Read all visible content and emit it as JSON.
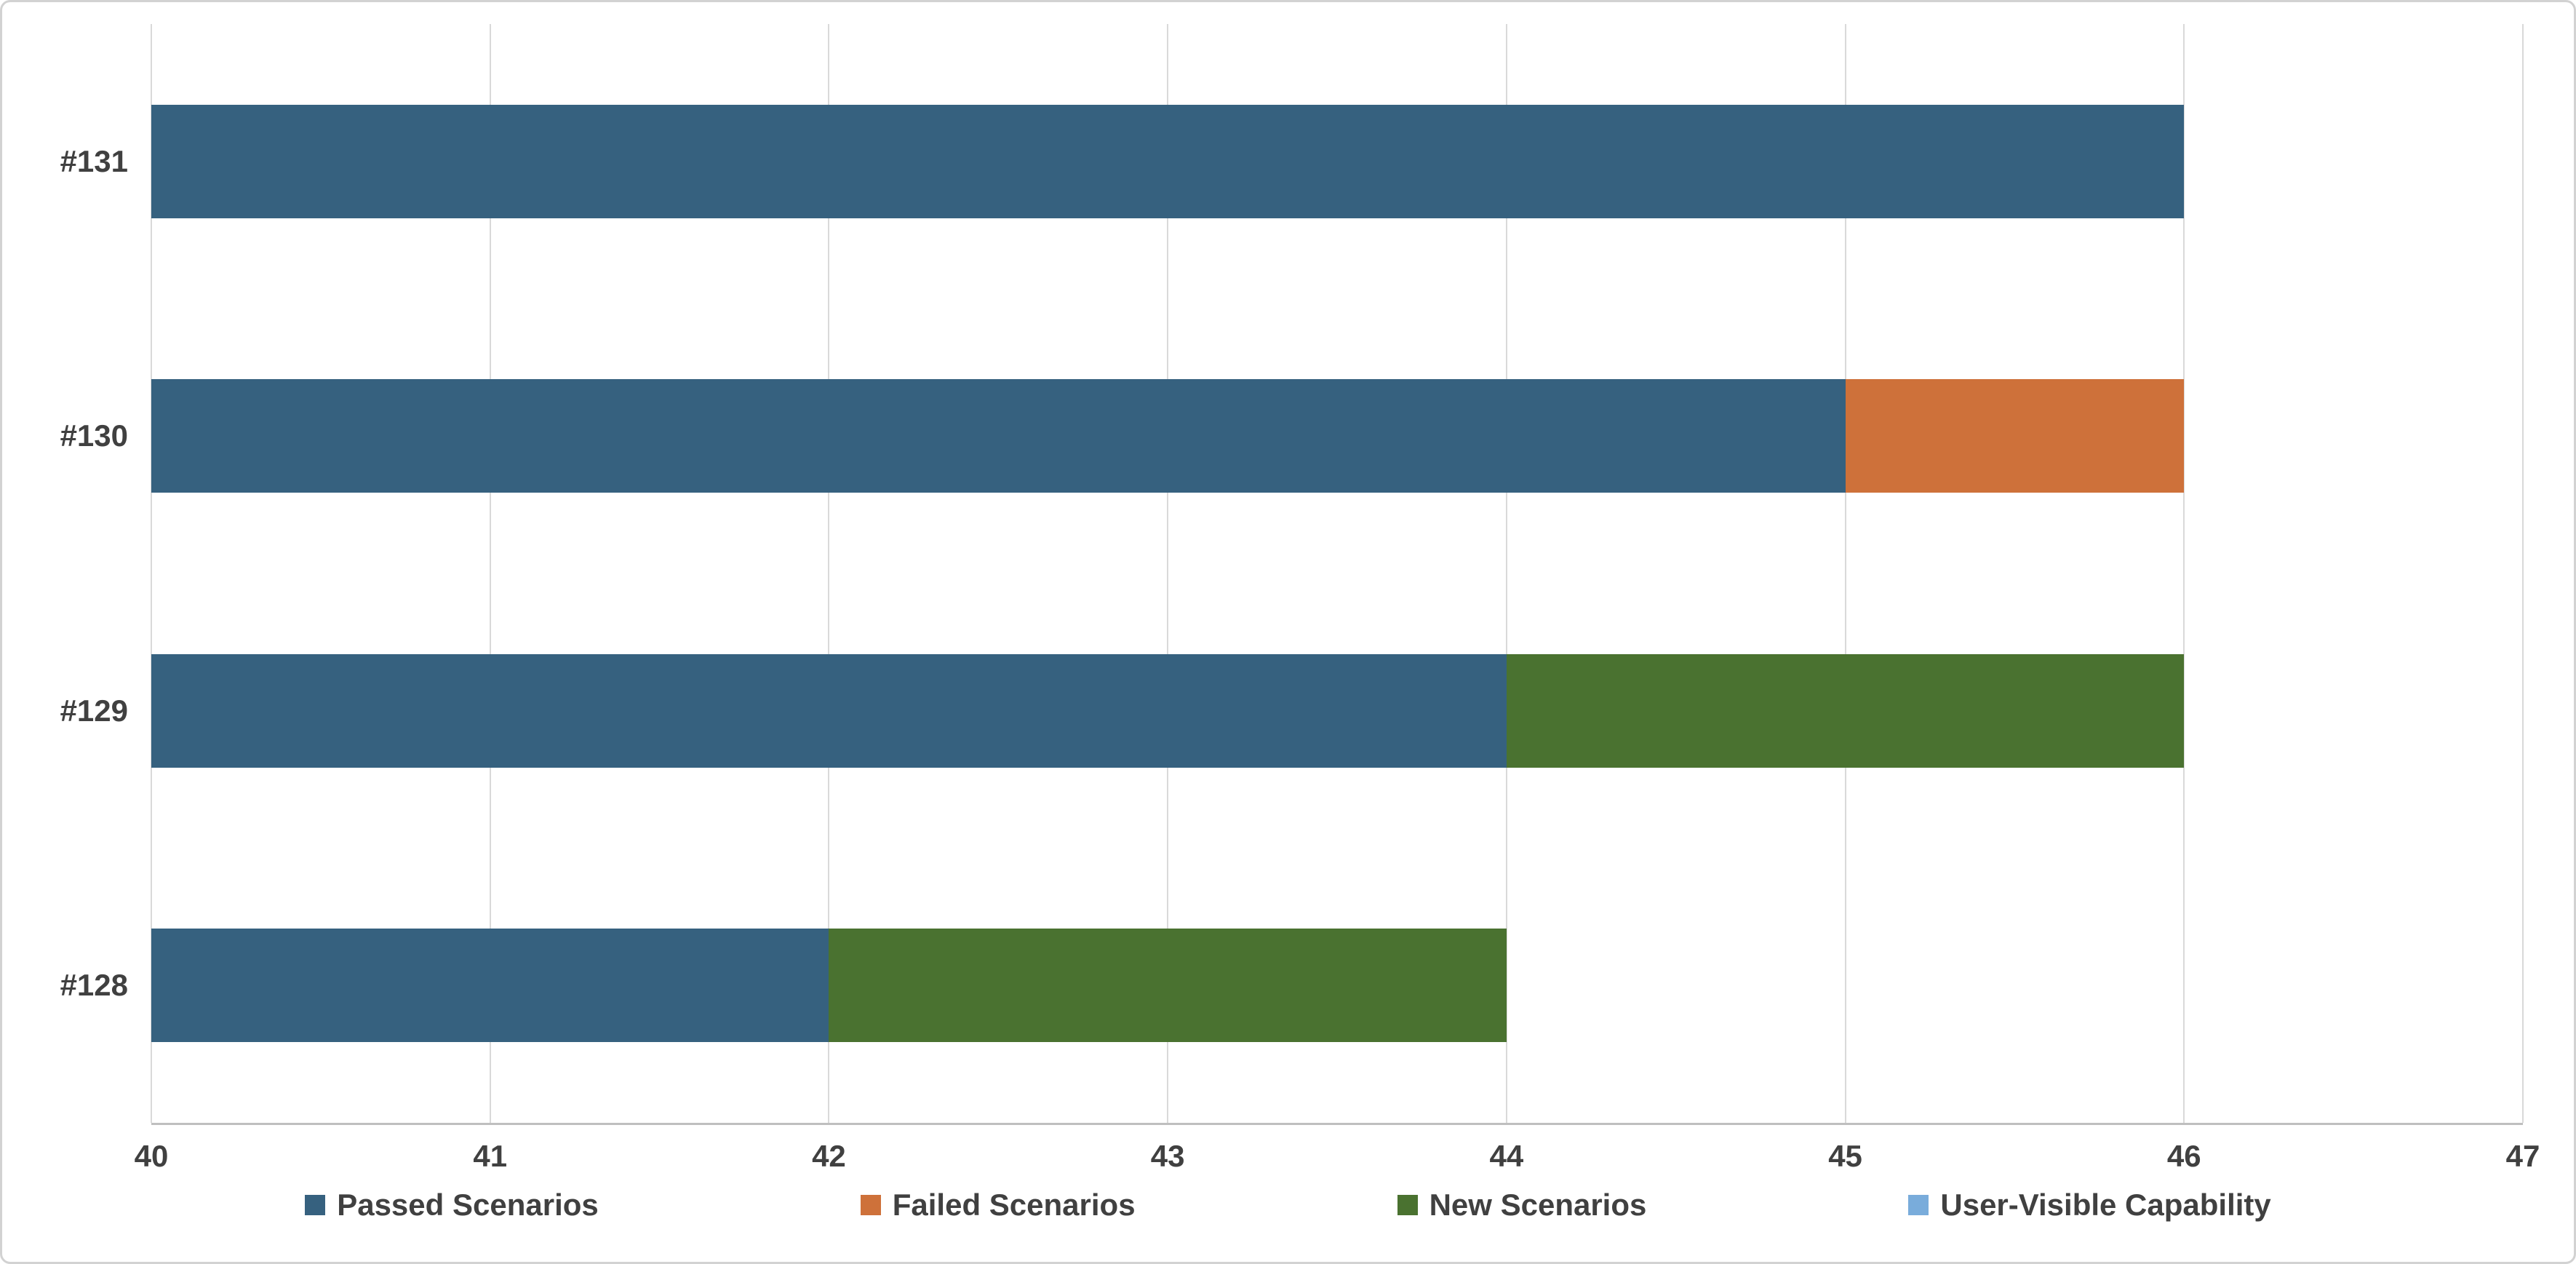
{
  "chart_data": {
    "type": "bar",
    "orientation": "horizontal",
    "stacked": true,
    "title": "",
    "xlabel": "",
    "ylabel": "",
    "categories": [
      "#131",
      "#130",
      "#129",
      "#128"
    ],
    "series": [
      {
        "name": "Passed Scenarios",
        "color": "#36617F",
        "values": [
          46,
          45,
          44,
          42
        ]
      },
      {
        "name": "Failed Scenarios",
        "color": "#CE713A",
        "values": [
          0,
          1,
          0,
          0
        ]
      },
      {
        "name": "New Scenarios",
        "color": "#4A7230",
        "values": [
          0,
          0,
          2,
          2
        ]
      },
      {
        "name": "User-Visible Capability",
        "color": "#79ACDB",
        "values": [
          0,
          0,
          0,
          0
        ]
      }
    ],
    "xlim": [
      40,
      47
    ],
    "xticks": [
      40,
      41,
      42,
      43,
      44,
      45,
      46,
      47
    ],
    "grid": "vertical",
    "gridline_color": "#d9d9d9",
    "axis_text_color": "#404040",
    "legend_position": "bottom"
  }
}
